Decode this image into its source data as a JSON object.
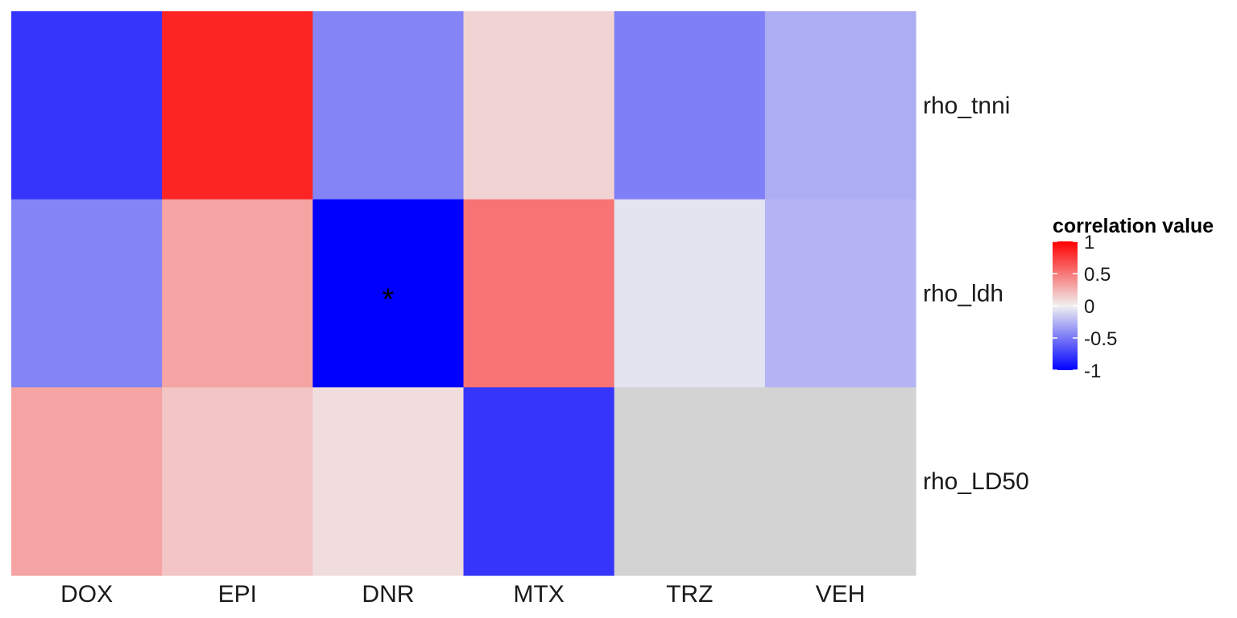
{
  "chart_data": {
    "type": "heatmap",
    "x_categories": [
      "DOX",
      "EPI",
      "DNR",
      "MTX",
      "TRZ",
      "VEH"
    ],
    "y_categories": [
      "rho_tnni",
      "rho_ldh",
      "rho_LD50"
    ],
    "values": [
      [
        -0.78,
        0.85,
        -0.45,
        0.12,
        -0.47,
        -0.28
      ],
      [
        -0.45,
        0.32,
        -1.0,
        0.52,
        -0.05,
        -0.25
      ],
      [
        0.32,
        0.18,
        0.08,
        -0.78,
        null,
        null
      ]
    ],
    "missing_color": "#d3d3d3",
    "significance_marks": [
      {
        "row": "rho_ldh",
        "col": "DNR",
        "label": "*"
      }
    ],
    "legend": {
      "title": "correlation value",
      "ticks": [
        1,
        0.5,
        0,
        -0.5,
        -1
      ],
      "tick_labels": [
        "1",
        "0.5",
        "0",
        "-0.5",
        "-1"
      ],
      "low_color": "#0000ff",
      "mid_color": "#f0f0f0",
      "high_color": "#ff0000",
      "range": [
        -1,
        1
      ],
      "placement": "right"
    },
    "grid": false
  }
}
